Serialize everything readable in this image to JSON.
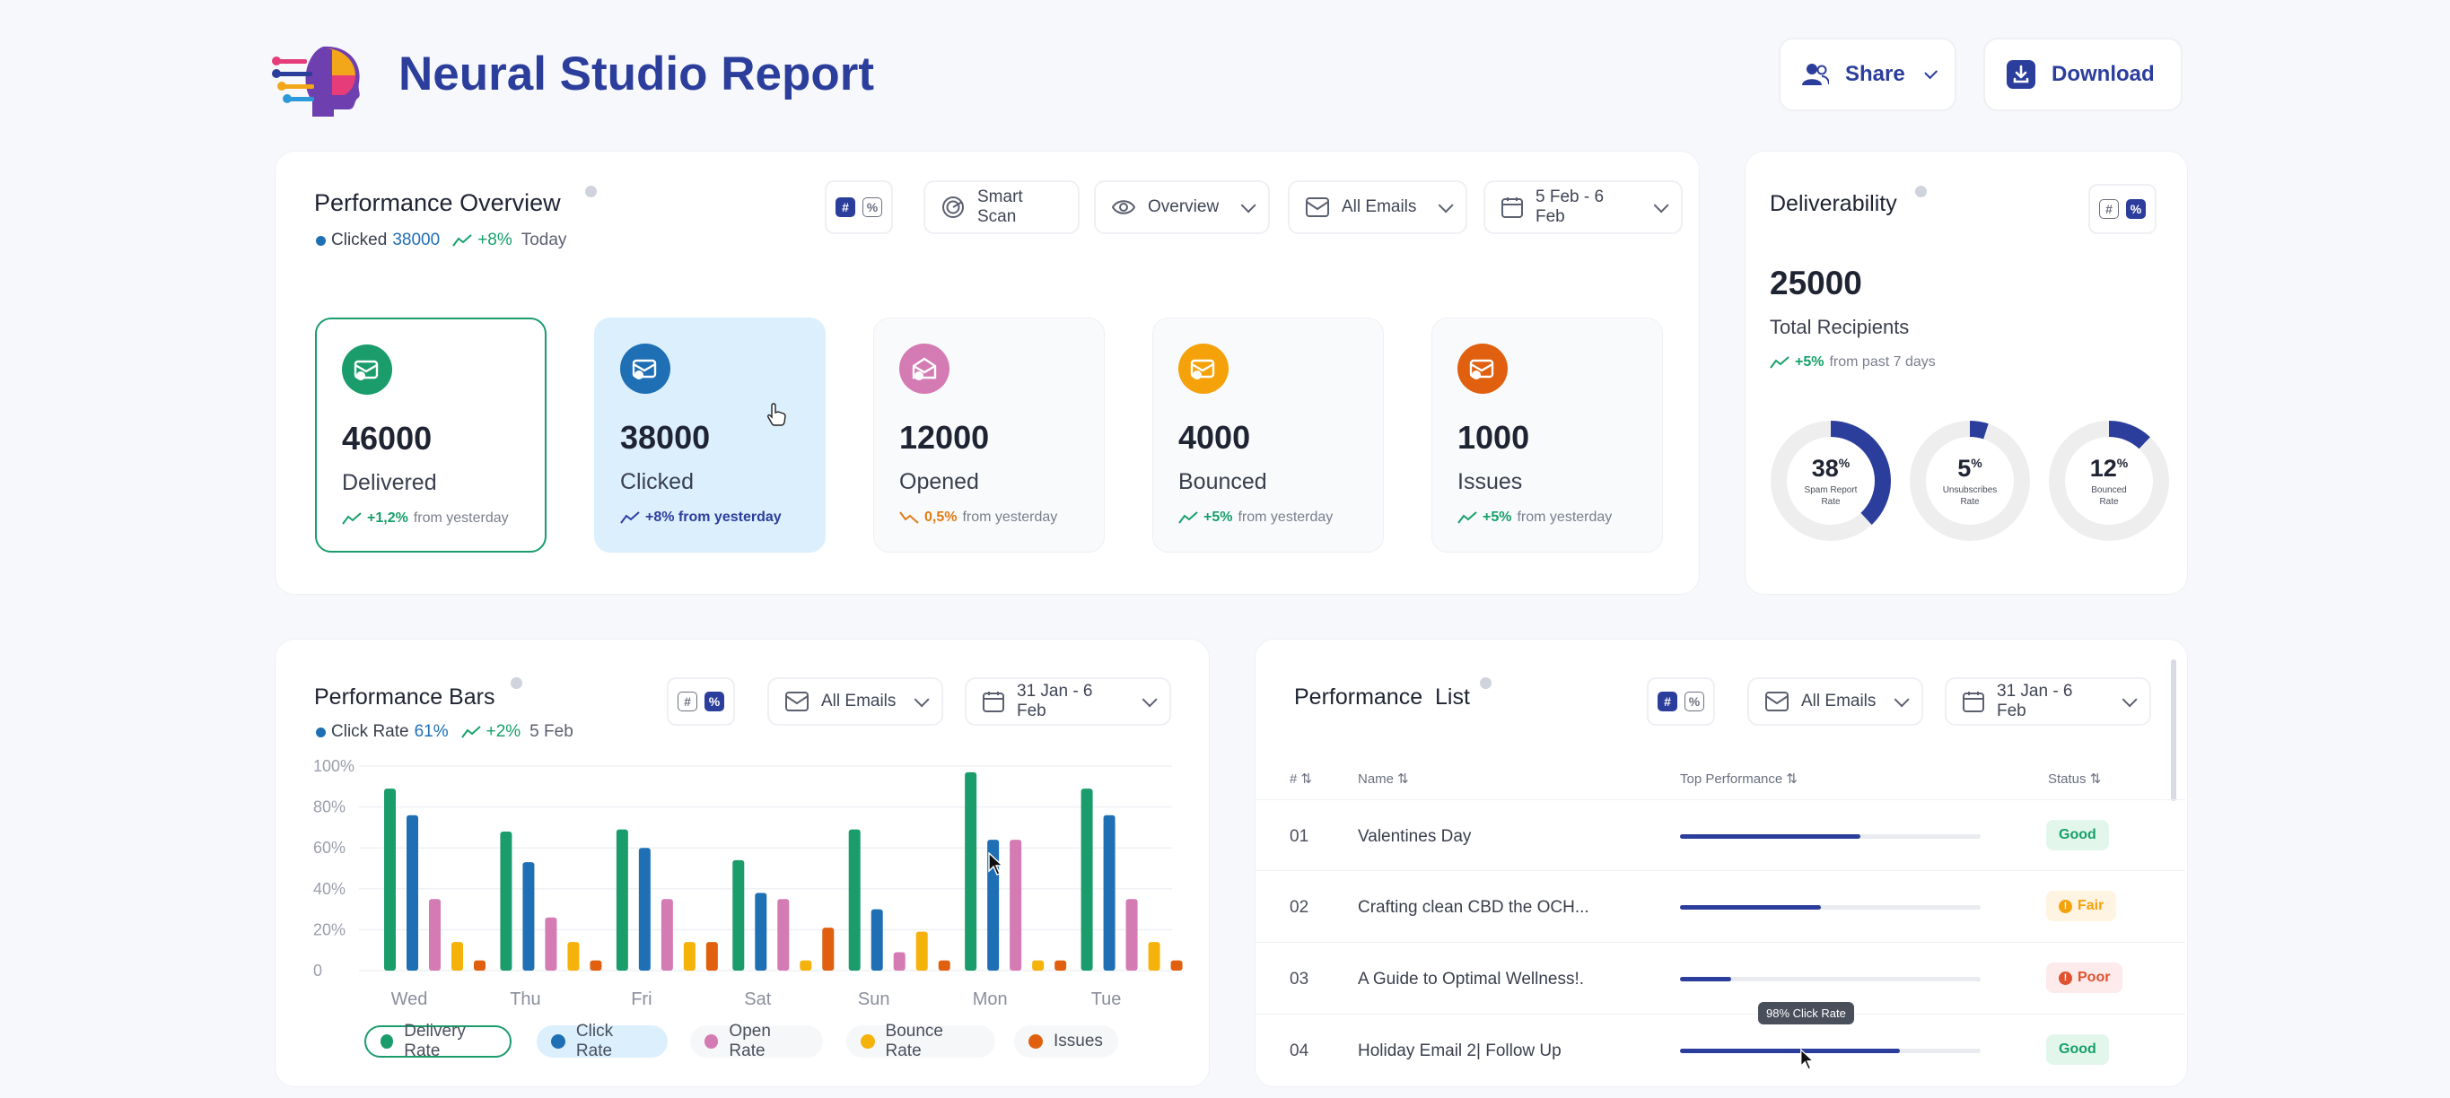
{
  "header": {
    "title": "Neural Studio Report",
    "share_label": "Share",
    "download_label": "Download"
  },
  "overview": {
    "title": "Performance Overview",
    "metric_label": "Clicked",
    "metric_value": "38000",
    "metric_change": "+8%",
    "metric_period": "Today",
    "smart_scan_label": "Smart Scan",
    "view_select": "Overview",
    "email_filter": "All Emails",
    "date_range": "5 Feb - 6 Feb",
    "stats": [
      {
        "value": "46000",
        "label": "Delivered",
        "change": "+1,2%",
        "direction": "up",
        "suffix": "from yesterday",
        "color": "#1a9c6b"
      },
      {
        "value": "38000",
        "label": "Clicked",
        "change": "+8% from yesterday",
        "direction": "up",
        "suffix": "",
        "color": "#1f6fb5"
      },
      {
        "value": "12000",
        "label": "Opened",
        "change": "0,5%",
        "direction": "down",
        "suffix": "from yesterday",
        "color": "#d47bb3"
      },
      {
        "value": "4000",
        "label": "Bounced",
        "change": "+5%",
        "direction": "up",
        "suffix": "from yesterday",
        "color": "#f5a20a"
      },
      {
        "value": "1000",
        "label": "Issues",
        "change": "+5%",
        "direction": "up",
        "suffix": "from yesterday",
        "color": "#e0600f"
      }
    ]
  },
  "deliverability": {
    "title": "Deliverability",
    "total": "25000",
    "total_label": "Total Recipients",
    "change": "+5%",
    "change_suffix": "from past 7 days",
    "donuts": [
      {
        "value": "38",
        "unit": "%",
        "fraction": 0.38,
        "label1": "Spam Report",
        "label2": "Rate"
      },
      {
        "value": "5",
        "unit": "%",
        "fraction": 0.05,
        "label1": "Unsubscribes",
        "label2": "Rate"
      },
      {
        "value": "12",
        "unit": "%",
        "fraction": 0.12,
        "label1": "Bounced",
        "label2": "Rate"
      }
    ]
  },
  "bars_card": {
    "title": "Performance Bars",
    "metric_label": "Click Rate",
    "metric_value": "61%",
    "metric_change": "+2%",
    "metric_period": "5 Feb",
    "email_filter": "All Emails",
    "date_range": "31 Jan - 6 Feb"
  },
  "chart_data": {
    "type": "bar",
    "categories": [
      "Wed",
      "Thu",
      "Fri",
      "Sat",
      "Sun",
      "Mon",
      "Tue"
    ],
    "ylim": [
      0,
      100
    ],
    "yticks": [
      "100%",
      "80%",
      "60%",
      "40%",
      "20%",
      "0"
    ],
    "series": [
      {
        "name": "Delivery Rate",
        "color": "#1a9c6b",
        "values": [
          89,
          68,
          69,
          54,
          69,
          97,
          89
        ]
      },
      {
        "name": "Click Rate",
        "color": "#1f6fb5",
        "values": [
          76,
          53,
          60,
          38,
          30,
          64,
          76
        ]
      },
      {
        "name": "Open Rate",
        "color": "#d47bb3",
        "values": [
          35,
          26,
          35,
          35,
          9,
          64,
          35
        ]
      },
      {
        "name": "Bounce Rate",
        "color": "#f5b20a",
        "values": [
          14,
          14,
          14,
          5,
          19,
          5,
          14
        ]
      },
      {
        "name": "Issues",
        "color": "#e0600f",
        "values": [
          5,
          5,
          14,
          21,
          5,
          5,
          5
        ]
      }
    ],
    "legend_active": "Delivery Rate"
  },
  "list_card": {
    "title": "Performance  List",
    "email_filter": "All Emails",
    "date_range": "31 Jan - 6 Feb",
    "columns": [
      "#",
      "Name",
      "Top Performance",
      "Status"
    ],
    "tooltip": "98% Click Rate",
    "rows": [
      {
        "idx": "01",
        "name": "Valentines Day",
        "progress": 0.6,
        "status": "Good",
        "kind": "good"
      },
      {
        "idx": "02",
        "name": "Crafting clean CBD the OCH...",
        "progress": 0.47,
        "status": "Fair",
        "kind": "fair"
      },
      {
        "idx": "03",
        "name": "A Guide to Optimal Wellness!.",
        "progress": 0.17,
        "status": "Poor",
        "kind": "poor"
      },
      {
        "idx": "04",
        "name": "Holiday Email 2| Follow Up",
        "progress": 0.73,
        "status": "Good",
        "kind": "good"
      }
    ]
  }
}
